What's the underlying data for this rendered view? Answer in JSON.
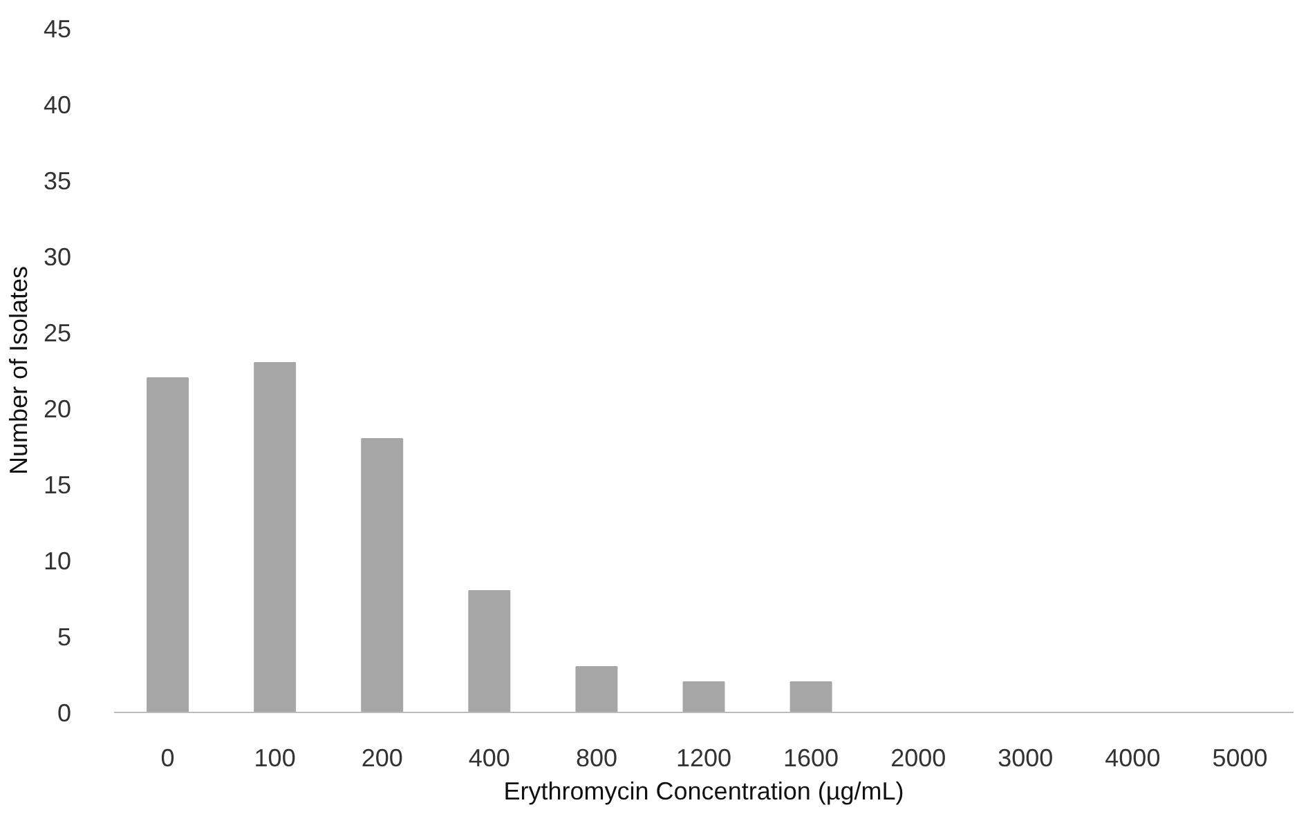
{
  "chart_data": {
    "type": "bar",
    "xlabel": "Erythromycin Concentration (µg/mL)",
    "ylabel": "Number of Isolates",
    "categories": [
      "0",
      "100",
      "200",
      "400",
      "800",
      "1200",
      "1600",
      "2000",
      "3000",
      "4000",
      "5000"
    ],
    "values": [
      22,
      23,
      18,
      8,
      3,
      2,
      2,
      0,
      0,
      0,
      0
    ],
    "color": "#a6a6a6",
    "ylim": [
      0,
      45
    ],
    "yticks": [
      0,
      5,
      10,
      15,
      20,
      25,
      30,
      35,
      40,
      45
    ],
    "grid": false
  }
}
